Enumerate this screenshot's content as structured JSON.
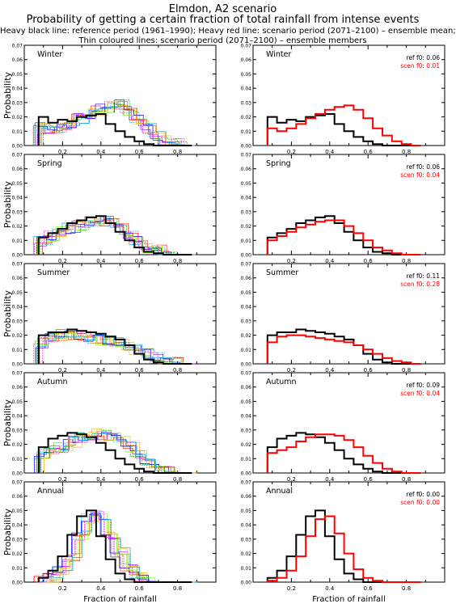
{
  "header": {
    "line1": "Elmdon, A2 scenario",
    "line2": "Probability of getting a certain fraction of total rainfall from intense events",
    "line3": "Heavy black line: reference period (1961–1990); Heavy red line: scenario period (2071–2100) – ensemble mean;",
    "line4": "Thin coloured lines: scenario period (2071–2100) – ensemble members"
  },
  "axes": {
    "ylabel": "Probability",
    "xlabel": "Fraction of rainfall",
    "yticks": [
      "0.00",
      "0.01",
      "0.02",
      "0.03",
      "0.04",
      "0.05",
      "0.06",
      "0.07"
    ],
    "xticks": [
      "0.2",
      "0.4",
      "0.6",
      "0.8"
    ],
    "xlim": [
      0,
      1
    ],
    "ylim": [
      0,
      0.07
    ]
  },
  "colors": {
    "reference": "#000000",
    "scenario_mean": "#ff0000",
    "members": [
      "#00c8c8",
      "#ff3030",
      "#9000ff",
      "#00c000",
      "#ffb000",
      "#0000ff",
      "#ff00ff",
      "#80ff00",
      "#00a0ff",
      "#ff8000"
    ]
  },
  "panels": [
    {
      "season": "Winter",
      "ref_f0": "ref f0: 0.06",
      "scen_f0": "scen f0: 0.01"
    },
    {
      "season": "Spring",
      "ref_f0": "ref f0: 0.06",
      "scen_f0": "scen f0: 0.04"
    },
    {
      "season": "Summer",
      "ref_f0": "ref f0: 0.11",
      "scen_f0": "scen f0: 0.28"
    },
    {
      "season": "Autumn",
      "ref_f0": "ref f0: 0.09",
      "scen_f0": "scen f0: 0.04"
    },
    {
      "season": "Annual",
      "ref_f0": "ref f0: 0.00",
      "scen_f0": "scen f0: 0.00"
    }
  ],
  "chart_data": {
    "type": "line",
    "step": "histogram",
    "x": [
      0.1,
      0.15,
      0.2,
      0.25,
      0.3,
      0.35,
      0.4,
      0.45,
      0.5,
      0.55,
      0.6,
      0.65,
      0.7,
      0.75,
      0.8,
      0.85
    ],
    "series": [
      {
        "panel": "Winter",
        "line": "reference",
        "values": [
          0.02,
          0.016,
          0.018,
          0.017,
          0.02,
          0.021,
          0.022,
          0.015,
          0.01,
          0.006,
          0.003,
          0.001,
          0,
          0,
          0,
          0
        ]
      },
      {
        "panel": "Winter",
        "line": "scenario mean",
        "values": [
          0.012,
          0.01,
          0.012,
          0.015,
          0.019,
          0.022,
          0.025,
          0.027,
          0.028,
          0.025,
          0.019,
          0.012,
          0.007,
          0.003,
          0.001,
          0
        ]
      },
      {
        "panel": "Spring",
        "line": "reference",
        "values": [
          0.012,
          0.015,
          0.018,
          0.022,
          0.024,
          0.026,
          0.027,
          0.022,
          0.016,
          0.01,
          0.005,
          0.002,
          0.001,
          0,
          0,
          0
        ]
      },
      {
        "panel": "Spring",
        "line": "scenario mean",
        "values": [
          0.01,
          0.013,
          0.016,
          0.019,
          0.021,
          0.023,
          0.024,
          0.024,
          0.02,
          0.015,
          0.01,
          0.005,
          0.003,
          0.001,
          0,
          0
        ]
      },
      {
        "panel": "Summer",
        "line": "reference",
        "values": [
          0.02,
          0.022,
          0.022,
          0.024,
          0.023,
          0.022,
          0.021,
          0.019,
          0.017,
          0.013,
          0.007,
          0.003,
          0.001,
          0,
          0,
          0
        ]
      },
      {
        "panel": "Summer",
        "line": "scenario mean",
        "values": [
          0.015,
          0.019,
          0.02,
          0.02,
          0.019,
          0.018,
          0.017,
          0.016,
          0.015,
          0.013,
          0.01,
          0.007,
          0.004,
          0.002,
          0.001,
          0
        ]
      },
      {
        "panel": "Autumn",
        "line": "reference",
        "values": [
          0.018,
          0.024,
          0.026,
          0.028,
          0.027,
          0.025,
          0.021,
          0.016,
          0.01,
          0.006,
          0.003,
          0.001,
          0,
          0,
          0,
          0
        ]
      },
      {
        "panel": "Autumn",
        "line": "scenario mean",
        "values": [
          0.014,
          0.016,
          0.018,
          0.022,
          0.025,
          0.027,
          0.027,
          0.026,
          0.023,
          0.018,
          0.012,
          0.007,
          0.003,
          0.001,
          0,
          0
        ]
      },
      {
        "panel": "Annual",
        "line": "reference",
        "values": [
          0.003,
          0.008,
          0.018,
          0.033,
          0.046,
          0.05,
          0.032,
          0.016,
          0.006,
          0.002,
          0,
          0,
          0,
          0,
          0,
          0
        ]
      },
      {
        "panel": "Annual",
        "line": "scenario mean",
        "values": [
          0.001,
          0.003,
          0.008,
          0.018,
          0.032,
          0.044,
          0.046,
          0.034,
          0.02,
          0.009,
          0.003,
          0.001,
          0,
          0,
          0,
          0
        ]
      }
    ]
  }
}
